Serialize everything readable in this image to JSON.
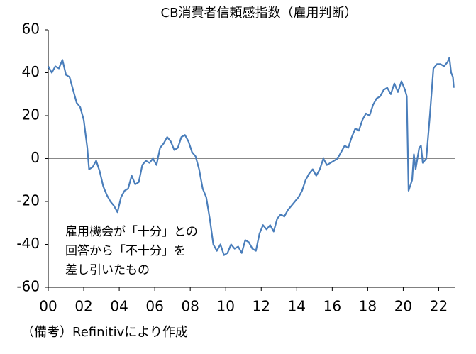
{
  "chart_data": {
    "type": "line",
    "title": "CB消費者信頼感指数（雇用判断）",
    "annotation": [
      "雇用機会が「十分」との",
      "回答から「不十分」を",
      "差し引いたもの"
    ],
    "note": "（備考）Refinitivにより作成",
    "color": "#4a7ebb",
    "x": [
      2000.0,
      2000.2,
      2000.4,
      2000.6,
      2000.8,
      2001.0,
      2001.2,
      2001.4,
      2001.6,
      2001.8,
      2002.0,
      2002.2,
      2002.3,
      2002.5,
      2002.7,
      2002.9,
      2003.1,
      2003.3,
      2003.5,
      2003.7,
      2003.9,
      2004.1,
      2004.3,
      2004.5,
      2004.7,
      2004.9,
      2005.1,
      2005.3,
      2005.5,
      2005.7,
      2005.9,
      2006.1,
      2006.3,
      2006.5,
      2006.7,
      2006.9,
      2007.1,
      2007.3,
      2007.5,
      2007.7,
      2007.9,
      2008.1,
      2008.3,
      2008.5,
      2008.7,
      2008.9,
      2009.1,
      2009.3,
      2009.5,
      2009.7,
      2009.9,
      2010.1,
      2010.3,
      2010.5,
      2010.7,
      2010.9,
      2011.1,
      2011.3,
      2011.5,
      2011.7,
      2011.9,
      2012.1,
      2012.3,
      2012.5,
      2012.7,
      2012.9,
      2013.1,
      2013.3,
      2013.5,
      2013.7,
      2013.9,
      2014.1,
      2014.3,
      2014.5,
      2014.7,
      2014.9,
      2015.1,
      2015.3,
      2015.5,
      2015.7,
      2015.9,
      2016.1,
      2016.3,
      2016.5,
      2016.7,
      2016.9,
      2017.1,
      2017.3,
      2017.5,
      2017.7,
      2017.9,
      2018.1,
      2018.3,
      2018.5,
      2018.7,
      2018.9,
      2019.1,
      2019.3,
      2019.5,
      2019.7,
      2019.9,
      2020.1,
      2020.2,
      2020.3,
      2020.5,
      2020.6,
      2020.7,
      2020.9,
      2021.0,
      2021.1,
      2021.3,
      2021.5,
      2021.7,
      2021.9,
      2022.1,
      2022.3,
      2022.5,
      2022.6,
      2022.7,
      2022.8,
      2022.85
    ],
    "values": [
      43,
      40,
      43,
      42,
      46,
      39,
      38,
      32,
      26,
      24,
      18,
      5,
      -5,
      -4,
      -1,
      -6,
      -13,
      -17,
      -20,
      -22,
      -25,
      -18,
      -15,
      -14,
      -8,
      -12,
      -11,
      -3,
      -1,
      -2,
      0,
      -3,
      5,
      7,
      10,
      8,
      4,
      5,
      10,
      11,
      8,
      3,
      1,
      -5,
      -14,
      -18,
      -28,
      -40,
      -43,
      -40,
      -45,
      -44,
      -40,
      -42,
      -41,
      -44,
      -38,
      -39,
      -42,
      -43,
      -35,
      -31,
      -33,
      -31,
      -34,
      -28,
      -26,
      -27,
      -24,
      -22,
      -20,
      -18,
      -15,
      -10,
      -7,
      -5,
      -8,
      -5,
      0,
      -3,
      -2,
      -1,
      0,
      3,
      6,
      5,
      10,
      14,
      13,
      18,
      21,
      20,
      25,
      28,
      29,
      32,
      33,
      30,
      35,
      31,
      36,
      32,
      29,
      -15,
      -10,
      2,
      -5,
      5,
      6,
      -2,
      0,
      20,
      42,
      44,
      44,
      43,
      45,
      47,
      40,
      38,
      33
    ],
    "xlim": [
      2000,
      2022.9
    ],
    "xticks": [
      {
        "value": 2000,
        "label": "00"
      },
      {
        "value": 2002,
        "label": "02"
      },
      {
        "value": 2004,
        "label": "04"
      },
      {
        "value": 2006,
        "label": "06"
      },
      {
        "value": 2008,
        "label": "08"
      },
      {
        "value": 2010,
        "label": "10"
      },
      {
        "value": 2012,
        "label": "12"
      },
      {
        "value": 2014,
        "label": "14"
      },
      {
        "value": 2016,
        "label": "16"
      },
      {
        "value": 2018,
        "label": "18"
      },
      {
        "value": 2020,
        "label": "20"
      },
      {
        "value": 2022,
        "label": "22"
      }
    ],
    "ylim": [
      -60,
      60
    ],
    "yticks": [
      -60,
      -40,
      -20,
      0,
      20,
      40,
      60
    ]
  }
}
